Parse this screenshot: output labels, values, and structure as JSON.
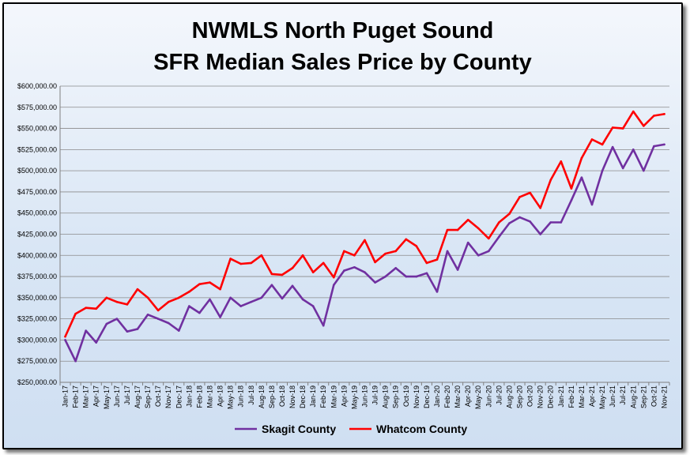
{
  "chart_data": {
    "type": "line",
    "title": "NWMLS North Puget Sound",
    "subtitle": "SFR Median Sales Price by County",
    "xlabel": "",
    "ylabel": "",
    "ylim": [
      250000,
      600000
    ],
    "yticks": [
      250000,
      275000,
      300000,
      325000,
      350000,
      375000,
      400000,
      425000,
      450000,
      475000,
      500000,
      525000,
      550000,
      575000,
      600000
    ],
    "ytick_labels": [
      "$250,000.00",
      "$275,000.00",
      "$300,000.00",
      "$325,000.00",
      "$350,000.00",
      "$375,000.00",
      "$400,000.00",
      "$425,000.00",
      "$450,000.00",
      "$475,000.00",
      "$500,000.00",
      "$525,000.00",
      "$550,000.00",
      "$575,000.00",
      "$600,000.00"
    ],
    "grid": true,
    "legend_position": "bottom",
    "categories": [
      "Jan-17",
      "Feb-17",
      "Mar-17",
      "Apr-17",
      "May-17",
      "Jun-17",
      "Jul-17",
      "Aug-17",
      "Sep-17",
      "Oct-17",
      "Nov-17",
      "Dec-17",
      "Jan-18",
      "Feb-18",
      "Mar-18",
      "Apr-18",
      "May-18",
      "Jun-18",
      "Jul-18",
      "Aug-18",
      "Sep-18",
      "Oct-18",
      "Nov-18",
      "Dec-18",
      "Jan-19",
      "Feb-19",
      "Mar-19",
      "Apr-19",
      "May-19",
      "Jun-19",
      "Jul-19",
      "Aug-19",
      "Sep-19",
      "Oct-19",
      "Nov-19",
      "Dec-19",
      "Jan-20",
      "Feb-20",
      "Mar-20",
      "Apr-20",
      "May-20",
      "Jun-20",
      "Jul-20",
      "Aug-20",
      "Sep-20",
      "Oct-20",
      "Nov-20",
      "Dec-20",
      "Jan-21",
      "Feb-21",
      "Mar-21",
      "Apr-21",
      "May-21",
      "Jun-21",
      "Jul-21",
      "Aug-21",
      "Sep-21",
      "Oct-21",
      "Nov-21"
    ],
    "xtick_labels": [
      "Jan-17",
      "Mar-17",
      "May-17",
      "Jul-17",
      "Sep-17",
      "Nov-17",
      "Jan-18",
      "Mar-18",
      "May-18",
      "Jul-18",
      "Sep-18",
      "Nov-18",
      "Jan-19",
      "Mar-19",
      "May-19",
      "Jul-19",
      "Sep-19",
      "Nov-19",
      "Jan-20",
      "Mar-20",
      "May-20",
      "Jul-20",
      "Sep-20",
      "Nov-20",
      "Jan-21",
      "Mar-21",
      "May-21",
      "Jul-21",
      "Sep-21",
      "Nov-21",
      "Feb-17",
      "Apr-17",
      "Jun-17",
      "Aug-17",
      "Oct-17",
      "Dec-17",
      "Feb-18",
      "Apr-18",
      "Jun-18",
      "Aug-18",
      "Oct-18",
      "Dec-18",
      "Feb-19",
      "Apr-19",
      "Jun-19",
      "Aug-19",
      "Oct-19",
      "Dec-19",
      "Feb-20",
      "Apr-20",
      "Jun-20",
      "Aug-20",
      "Oct-20",
      "Dec-20",
      "Feb-21",
      "Apr-21",
      "Jun-21",
      "Aug-21",
      "Oct-21"
    ],
    "series": [
      {
        "name": "Skagit County",
        "color": "#7030a0",
        "values": [
          300000,
          275000,
          311000,
          297000,
          319000,
          325000,
          310000,
          313000,
          330000,
          325000,
          320000,
          311000,
          340000,
          332000,
          348000,
          327000,
          350000,
          340000,
          345000,
          350000,
          365000,
          349000,
          364000,
          348000,
          340000,
          317000,
          365000,
          382000,
          386000,
          380000,
          368000,
          375000,
          385000,
          375000,
          375000,
          379000,
          357000,
          405000,
          383000,
          415000,
          400000,
          405000,
          422000,
          438000,
          445000,
          440000,
          425000,
          439000,
          439000,
          465000,
          492000,
          460000,
          500000,
          528000,
          503000,
          525000,
          500000,
          529000,
          531000
        ]
      },
      {
        "name": "Whatcom County",
        "color": "#ff0000",
        "values": [
          304000,
          331000,
          338000,
          337000,
          350000,
          345000,
          342000,
          360000,
          350000,
          335000,
          345000,
          350000,
          357000,
          366000,
          368000,
          360000,
          396000,
          390000,
          391000,
          400000,
          378000,
          377000,
          385000,
          400000,
          380000,
          391000,
          374000,
          405000,
          400000,
          418000,
          392000,
          402000,
          405000,
          419000,
          411000,
          391000,
          395000,
          430000,
          430000,
          442000,
          432000,
          420000,
          439000,
          449000,
          469000,
          474000,
          456000,
          489000,
          511000,
          479000,
          515000,
          537000,
          531000,
          551000,
          550000,
          570000,
          553000,
          565000,
          567000
        ]
      }
    ]
  }
}
